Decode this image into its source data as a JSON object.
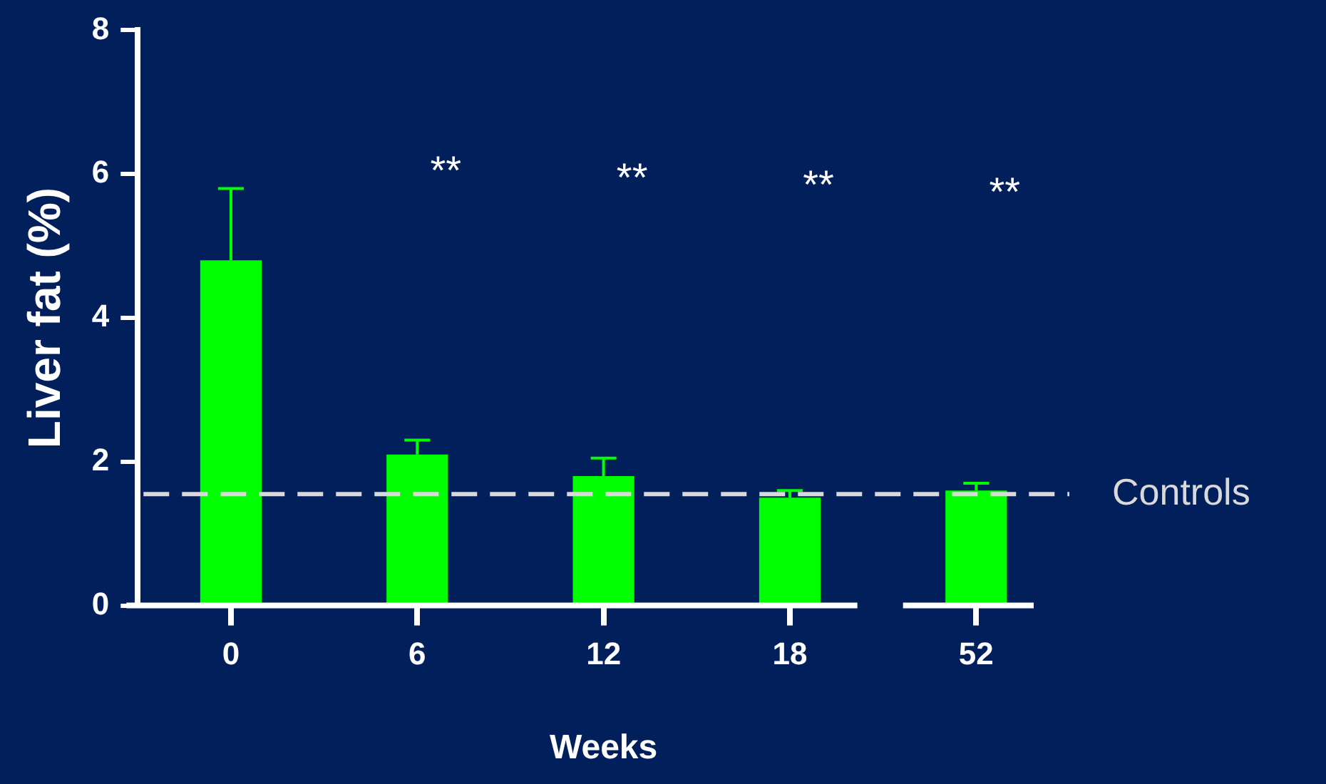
{
  "chart_data": {
    "type": "bar",
    "xlabel": "Weeks",
    "ylabel": "Liver fat (%)",
    "categories": [
      "0",
      "6",
      "12",
      "18",
      "52"
    ],
    "values": [
      4.8,
      2.1,
      1.8,
      1.5,
      1.6
    ],
    "errors": [
      [
        4.8,
        5.8
      ],
      [
        2.1,
        2.3
      ],
      [
        1.8,
        2.05
      ],
      [
        1.5,
        1.6
      ],
      [
        1.6,
        1.7
      ]
    ],
    "color": "#00ff00",
    "ylim": [
      0,
      8
    ],
    "yticks": [
      0,
      2,
      4,
      6,
      8
    ],
    "grid": false,
    "legend": false,
    "ref_lines": [
      {
        "axis": "y",
        "value": 1.55,
        "label": "Controls",
        "color": "#d9d9d9",
        "line_style": "dashed"
      }
    ],
    "annotations": [
      "**",
      "**",
      "**",
      "**"
    ]
  }
}
